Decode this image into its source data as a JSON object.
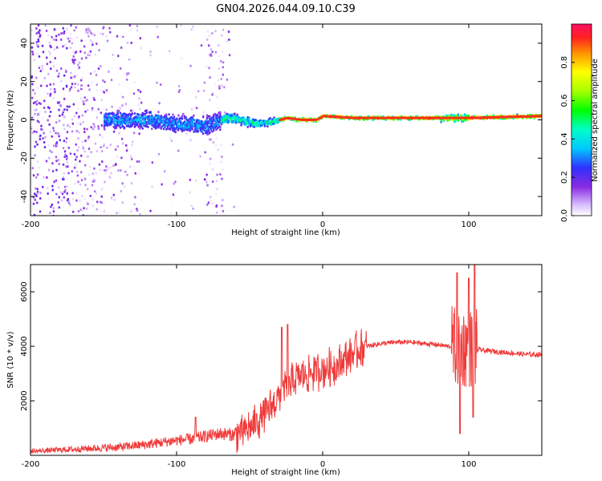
{
  "title": "GN04.2026.044.09.10.C39",
  "chart_data": [
    {
      "type": "heatmap",
      "xlabel": "Height of straight line (km)",
      "ylabel": "Frequency (Hz)",
      "xlim": [
        -200,
        150
      ],
      "ylim": [
        -50,
        50
      ],
      "xticks": [
        -200,
        -100,
        0,
        100
      ],
      "yticks": [
        -40,
        -20,
        0,
        20,
        40
      ],
      "colorbar": {
        "label": "Normalized spectral amplitude",
        "range": [
          0,
          1
        ],
        "ticks": [
          0.0,
          0.2,
          0.4,
          0.6,
          0.8
        ]
      },
      "ridge": {
        "x": [
          -145,
          -120,
          -100,
          -80,
          -65,
          -45,
          -35,
          -25,
          -15,
          -5,
          0,
          20,
          60,
          100,
          150
        ],
        "freq": [
          0,
          0,
          -2,
          -3,
          1,
          -2,
          -1,
          1,
          0,
          0,
          2,
          1,
          1,
          1,
          2
        ]
      }
    },
    {
      "type": "line",
      "xlabel": "Height of straight line (km)",
      "ylabel": "SNR (10 * v/v)",
      "xlim": [
        -200,
        150
      ],
      "ylim": [
        0,
        7000
      ],
      "xticks": [
        -200,
        -100,
        0,
        100
      ],
      "yticks": [
        2000,
        4000,
        6000
      ],
      "series": [
        {
          "name": "SNR",
          "color": "#f03a3a",
          "x": [
            -200,
            -180,
            -160,
            -140,
            -120,
            -100,
            -90,
            -80,
            -70,
            -60,
            -50,
            -40,
            -35,
            -30,
            -25,
            -20,
            -15,
            -10,
            -5,
            0,
            10,
            20,
            30,
            40,
            50,
            60,
            70,
            80,
            85,
            90,
            95,
            100,
            105,
            110,
            120,
            130,
            140,
            150
          ],
          "y": [
            150,
            200,
            250,
            300,
            400,
            550,
            600,
            700,
            800,
            750,
            1000,
            1500,
            1800,
            2200,
            2500,
            2700,
            2900,
            3000,
            3100,
            3150,
            3300,
            3700,
            4000,
            4100,
            4150,
            4150,
            4100,
            4050,
            4000,
            4000,
            3950,
            3950,
            3900,
            3850,
            3800,
            3750,
            3700,
            3700
          ]
        }
      ],
      "spikes": [
        {
          "x": -87,
          "y": 1400
        },
        {
          "x": -28,
          "y": 4700
        },
        {
          "x": -24,
          "y": 4800
        },
        {
          "x": 92,
          "y": 6700
        },
        {
          "x": 94,
          "y": 800
        },
        {
          "x": 100,
          "y": 6500
        },
        {
          "x": 104,
          "y": 7000
        },
        {
          "x": 103,
          "y": 1400
        }
      ]
    }
  ]
}
